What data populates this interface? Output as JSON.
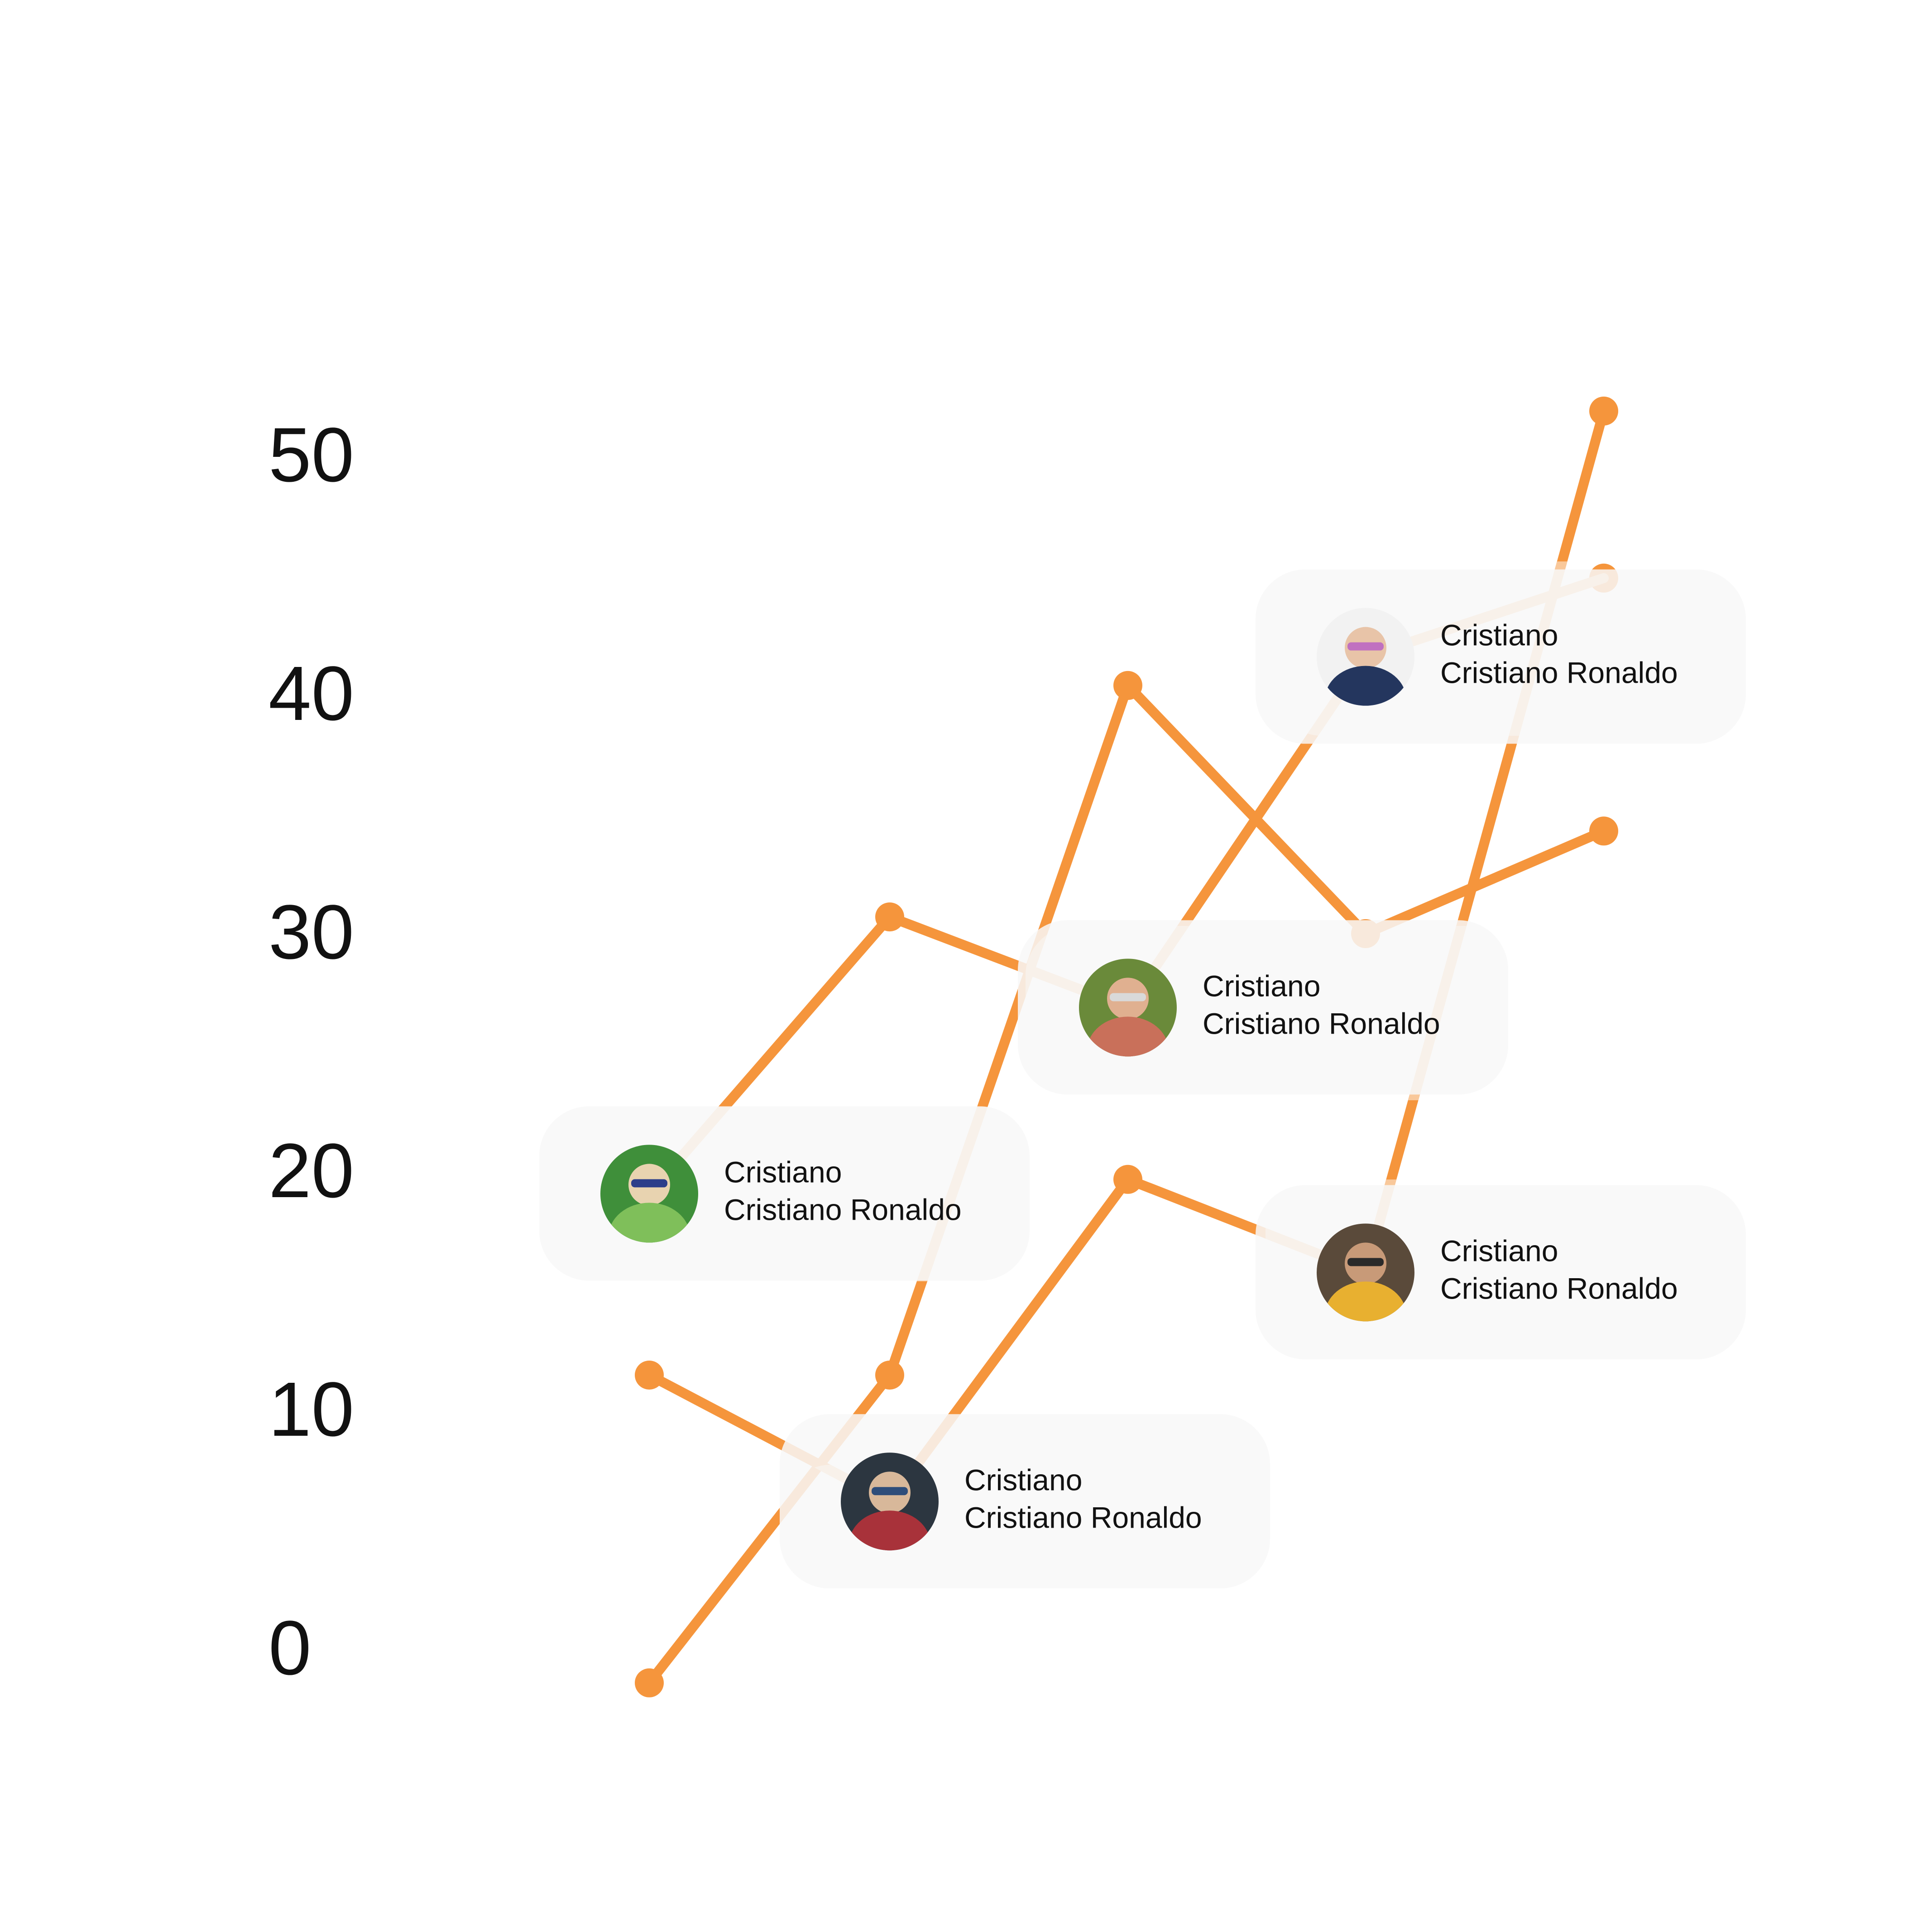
{
  "chart_data": {
    "type": "line",
    "x": [
      1,
      2,
      3,
      4,
      5
    ],
    "ylim": [
      0,
      50
    ],
    "yticks": [
      0,
      10,
      20,
      30,
      40,
      50
    ],
    "grid": false,
    "legend": "none",
    "title": "",
    "xlabel": "",
    "ylabel": "",
    "series": [
      {
        "values": [
          -1.4,
          11.5,
          40.4,
          30.0,
          34.3
        ]
      },
      {
        "values": [
          11.5,
          6.2,
          19.7,
          15.8,
          51.9
        ]
      },
      {
        "values": [
          19.1,
          30.7,
          26.9,
          41.6,
          44.9
        ]
      }
    ],
    "annotations": [
      {
        "series": 2,
        "point": 0,
        "title": "Cristiano",
        "name": "Cristiano Ronaldo",
        "avatar": "avatar-kid-sunglasses-green"
      },
      {
        "series": 1,
        "point": 1,
        "title": "Cristiano",
        "name": "Cristiano Ronaldo",
        "avatar": "avatar-man-red-shirt"
      },
      {
        "series": 2,
        "point": 2,
        "title": "Cristiano",
        "name": "Cristiano Ronaldo",
        "avatar": "avatar-man-headscarf"
      },
      {
        "series": 1,
        "point": 3,
        "title": "Cristiano",
        "name": "Cristiano Ronaldo",
        "avatar": "avatar-man-yellow-shirt"
      },
      {
        "series": 2,
        "point": 3,
        "title": "Cristiano",
        "name": "Cristiano Ronaldo",
        "avatar": "avatar-boy-blue-shirt"
      }
    ]
  },
  "colors": {
    "line": "#f5953c",
    "line_faded": "#f9c89a",
    "card_bg": "#f8f8f8",
    "tick_text": "#111111",
    "card_text": "#111111"
  }
}
